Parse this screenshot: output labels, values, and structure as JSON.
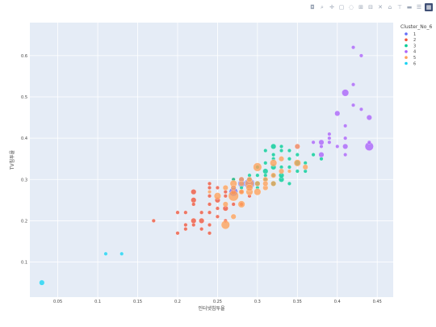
{
  "toolbar": {
    "buttons": [
      "camera-icon",
      "zoom-icon",
      "pan-icon",
      "box-select-icon",
      "lasso-icon",
      "zoom-in-icon",
      "zoom-out-icon",
      "autoscale-icon",
      "reset-axes-icon",
      "spike-lines-icon",
      "hover-closest-icon",
      "hover-compare-icon",
      "plotly-logo-icon"
    ]
  },
  "chart_data": {
    "type": "scatter",
    "xlabel": "인터넷침투율",
    "ylabel": "TV침투율",
    "xlim": [
      0.015,
      0.47
    ],
    "ylim": [
      0.015,
      0.68
    ],
    "xticks": [
      0.05,
      0.1,
      0.15,
      0.2,
      0.25,
      0.3,
      0.35,
      0.4,
      0.45
    ],
    "xtick_labels": [
      "0.05",
      "0.1",
      "0.15",
      "0.2",
      "0.25",
      "0.3",
      "0.35",
      "0.4",
      "0.45"
    ],
    "yticks": [
      0.1,
      0.2,
      0.3,
      0.4,
      0.5,
      0.6
    ],
    "ytick_labels": [
      "0.1",
      "0.2",
      "0.3",
      "0.4",
      "0.5",
      "0.6"
    ],
    "grid": true,
    "legend": {
      "title": "Cluster_No_6",
      "placement": "top-right"
    },
    "series": [
      {
        "name": "1",
        "color": "#636efa",
        "points": [
          [
            0.29,
            0.29,
            5
          ],
          [
            0.28,
            0.29,
            3
          ],
          [
            0.27,
            0.28,
            2
          ],
          [
            0.27,
            0.27,
            4
          ],
          [
            0.28,
            0.3,
            2
          ],
          [
            0.29,
            0.3,
            2
          ]
        ]
      },
      {
        "name": "2",
        "color": "#ef553b",
        "points": [
          [
            0.17,
            0.2,
            1
          ],
          [
            0.2,
            0.17,
            1
          ],
          [
            0.2,
            0.22,
            1
          ],
          [
            0.21,
            0.22,
            1
          ],
          [
            0.21,
            0.18,
            1
          ],
          [
            0.21,
            0.19,
            1
          ],
          [
            0.22,
            0.2,
            2
          ],
          [
            0.22,
            0.25,
            2
          ],
          [
            0.22,
            0.27,
            2
          ],
          [
            0.22,
            0.24,
            1
          ],
          [
            0.22,
            0.19,
            1
          ],
          [
            0.23,
            0.18,
            1
          ],
          [
            0.23,
            0.2,
            2
          ],
          [
            0.23,
            0.22,
            1
          ],
          [
            0.24,
            0.17,
            1
          ],
          [
            0.24,
            0.19,
            1
          ],
          [
            0.24,
            0.22,
            1
          ],
          [
            0.24,
            0.24,
            1
          ],
          [
            0.24,
            0.26,
            1
          ],
          [
            0.24,
            0.28,
            1
          ],
          [
            0.24,
            0.29,
            1
          ],
          [
            0.25,
            0.21,
            1
          ],
          [
            0.25,
            0.25,
            2
          ],
          [
            0.25,
            0.28,
            1
          ],
          [
            0.26,
            0.23,
            2
          ],
          [
            0.26,
            0.26,
            1
          ],
          [
            0.26,
            0.2,
            1
          ],
          [
            0.27,
            0.24,
            1
          ],
          [
            0.27,
            0.27,
            2
          ],
          [
            0.27,
            0.3,
            1
          ],
          [
            0.28,
            0.24,
            1
          ],
          [
            0.28,
            0.27,
            1
          ],
          [
            0.29,
            0.26,
            1
          ],
          [
            0.25,
            0.23,
            1
          ],
          [
            0.26,
            0.27,
            1
          ]
        ]
      },
      {
        "name": "3",
        "color": "#00cc96",
        "points": [
          [
            0.27,
            0.3,
            1
          ],
          [
            0.28,
            0.28,
            1
          ],
          [
            0.29,
            0.3,
            1
          ],
          [
            0.3,
            0.28,
            1
          ],
          [
            0.3,
            0.31,
            1
          ],
          [
            0.3,
            0.29,
            2
          ],
          [
            0.31,
            0.32,
            2
          ],
          [
            0.31,
            0.34,
            1
          ],
          [
            0.31,
            0.37,
            1
          ],
          [
            0.31,
            0.3,
            1
          ],
          [
            0.32,
            0.29,
            2
          ],
          [
            0.32,
            0.33,
            2
          ],
          [
            0.32,
            0.35,
            1
          ],
          [
            0.32,
            0.38,
            2
          ],
          [
            0.32,
            0.36,
            1
          ],
          [
            0.32,
            0.31,
            1
          ],
          [
            0.33,
            0.3,
            2
          ],
          [
            0.33,
            0.31,
            2
          ],
          [
            0.33,
            0.33,
            1
          ],
          [
            0.33,
            0.37,
            1
          ],
          [
            0.33,
            0.38,
            1
          ],
          [
            0.34,
            0.29,
            1
          ],
          [
            0.34,
            0.33,
            1
          ],
          [
            0.34,
            0.35,
            1
          ],
          [
            0.34,
            0.37,
            1
          ],
          [
            0.35,
            0.32,
            1
          ],
          [
            0.35,
            0.34,
            2
          ],
          [
            0.35,
            0.36,
            1
          ],
          [
            0.36,
            0.32,
            1
          ],
          [
            0.36,
            0.34,
            1
          ],
          [
            0.37,
            0.36,
            1
          ],
          [
            0.38,
            0.35,
            1
          ],
          [
            0.29,
            0.31,
            1
          ],
          [
            0.31,
            0.31,
            1
          ],
          [
            0.3,
            0.33,
            1
          ]
        ]
      },
      {
        "name": "4",
        "color": "#ab63fa",
        "points": [
          [
            0.35,
            0.38,
            2
          ],
          [
            0.37,
            0.39,
            1
          ],
          [
            0.38,
            0.38,
            1
          ],
          [
            0.38,
            0.39,
            2
          ],
          [
            0.38,
            0.36,
            2
          ],
          [
            0.39,
            0.4,
            1
          ],
          [
            0.39,
            0.41,
            1
          ],
          [
            0.4,
            0.46,
            2
          ],
          [
            0.41,
            0.51,
            3
          ],
          [
            0.41,
            0.43,
            1
          ],
          [
            0.41,
            0.38,
            2
          ],
          [
            0.41,
            0.36,
            1
          ],
          [
            0.41,
            0.4,
            1
          ],
          [
            0.42,
            0.48,
            1
          ],
          [
            0.42,
            0.53,
            1
          ],
          [
            0.42,
            0.62,
            1
          ],
          [
            0.43,
            0.6,
            1
          ],
          [
            0.43,
            0.47,
            1
          ],
          [
            0.44,
            0.45,
            2
          ],
          [
            0.44,
            0.38,
            4
          ],
          [
            0.44,
            0.39,
            1
          ],
          [
            0.4,
            0.38,
            1
          ],
          [
            0.39,
            0.39,
            1
          ]
        ]
      },
      {
        "name": "5",
        "color": "#ffa15a",
        "points": [
          [
            0.24,
            0.27,
            1
          ],
          [
            0.25,
            0.26,
            3
          ],
          [
            0.26,
            0.28,
            2
          ],
          [
            0.26,
            0.19,
            4
          ],
          [
            0.27,
            0.26,
            5
          ],
          [
            0.27,
            0.29,
            3
          ],
          [
            0.27,
            0.21,
            2
          ],
          [
            0.28,
            0.24,
            3
          ],
          [
            0.28,
            0.27,
            2
          ],
          [
            0.28,
            0.3,
            2
          ],
          [
            0.29,
            0.27,
            3
          ],
          [
            0.29,
            0.29,
            4
          ],
          [
            0.29,
            0.3,
            2
          ],
          [
            0.3,
            0.27,
            3
          ],
          [
            0.3,
            0.33,
            4
          ],
          [
            0.3,
            0.29,
            2
          ],
          [
            0.31,
            0.3,
            2
          ],
          [
            0.31,
            0.28,
            2
          ],
          [
            0.32,
            0.29,
            2
          ],
          [
            0.32,
            0.31,
            2
          ],
          [
            0.32,
            0.34,
            3
          ],
          [
            0.33,
            0.32,
            2
          ],
          [
            0.33,
            0.35,
            2
          ],
          [
            0.34,
            0.32,
            1
          ],
          [
            0.35,
            0.34,
            3
          ],
          [
            0.35,
            0.38,
            2
          ],
          [
            0.36,
            0.33,
            2
          ],
          [
            0.28,
            0.29,
            2
          ],
          [
            0.29,
            0.28,
            3
          ],
          [
            0.27,
            0.28,
            2
          ],
          [
            0.26,
            0.24,
            2
          ],
          [
            0.31,
            0.29,
            2
          ]
        ]
      },
      {
        "name": "6",
        "color": "#19d3f3",
        "points": [
          [
            0.03,
            0.05,
            2
          ],
          [
            0.11,
            0.12,
            1
          ],
          [
            0.13,
            0.12,
            1
          ]
        ]
      }
    ]
  }
}
